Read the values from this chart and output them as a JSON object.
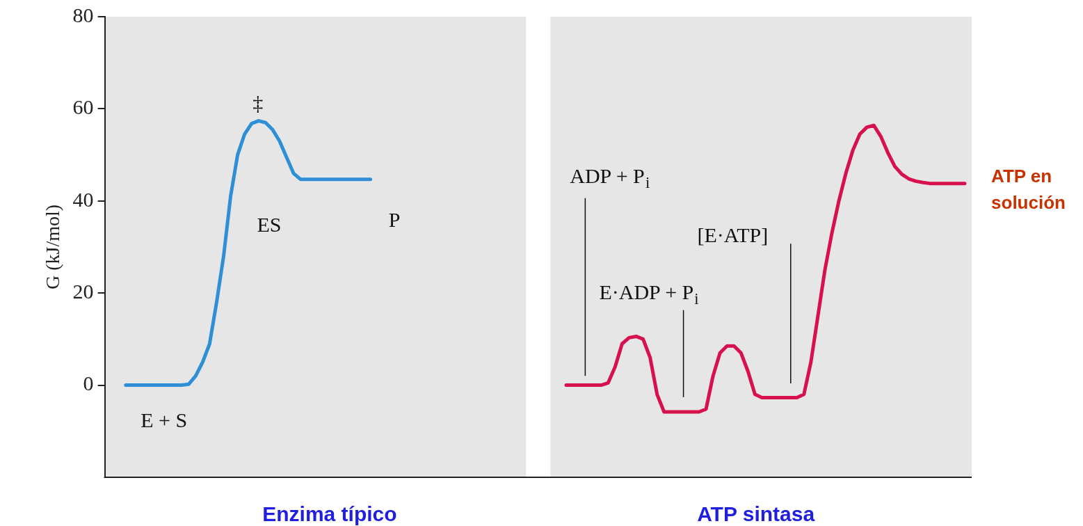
{
  "chart_data": {
    "type": "line",
    "ylabel": "G (kJ/mol)",
    "ylim": [
      -20,
      80
    ],
    "yticks": [
      0,
      20,
      40,
      60,
      80
    ],
    "tick_labels": "y",
    "categories": [
      null,
      null,
      null,
      null,
      null,
      null,
      null,
      null,
      null,
      null,
      null,
      null,
      null,
      null,
      null,
      null,
      null,
      null,
      null,
      null,
      null,
      null,
      null,
      null,
      null,
      null,
      null,
      null,
      null,
      null,
      null,
      null,
      null,
      null,
      null,
      null,
      null,
      null,
      null,
      null,
      null,
      null,
      null,
      null,
      null,
      null,
      null,
      null,
      null,
      null,
      null,
      null,
      null,
      null,
      null,
      null,
      null,
      null,
      null,
      null,
      null,
      null,
      null,
      null,
      null,
      null,
      null,
      null,
      null,
      null,
      null,
      null,
      null,
      null,
      null,
      null,
      null,
      null,
      null,
      null,
      null,
      null,
      null,
      null,
      null,
      null,
      null,
      null,
      null,
      null,
      null,
      null,
      null,
      null,
      null,
      null,
      null,
      null,
      null,
      null,
      null,
      null,
      null,
      null,
      null,
      null,
      null,
      null,
      null,
      null,
      null,
      null,
      null,
      null,
      null,
      null,
      null,
      null,
      null,
      null,
      null,
      null,
      null,
      null,
      null
    ],
    "series": [
      {
        "color": "#2f8fd6",
        "values": [
          null,
          null,
          null,
          0,
          0,
          0,
          0,
          0,
          0,
          0,
          0,
          0,
          0.2,
          2,
          5,
          9,
          18,
          28,
          41,
          50,
          54.5,
          56.8,
          57.4,
          57,
          55.5,
          53,
          49.5,
          46,
          44.7,
          44.7,
          44.7,
          44.7,
          44.7,
          44.7,
          44.7,
          44.7,
          44.7,
          44.7,
          44.7,
          null,
          null,
          null,
          null,
          null,
          null,
          null,
          null,
          null,
          null,
          null,
          null,
          null,
          null,
          null,
          null,
          null,
          null,
          null,
          null,
          null,
          null,
          null,
          null,
          null,
          null,
          null,
          null,
          null,
          null,
          null,
          null,
          null,
          null,
          null,
          null,
          null,
          null,
          null,
          null,
          null,
          null,
          null,
          null,
          null,
          null,
          null,
          null,
          null,
          null,
          null,
          null,
          null,
          null,
          null,
          null,
          null,
          null,
          null,
          null,
          null,
          null,
          null,
          null,
          null,
          null,
          null,
          null,
          null,
          null,
          null,
          null,
          null,
          null,
          null,
          null,
          null,
          null,
          null,
          null,
          null,
          null,
          null,
          null,
          null,
          null
        ]
      },
      {
        "color": "#d6114d",
        "values": [
          null,
          null,
          null,
          null,
          null,
          null,
          null,
          null,
          null,
          null,
          null,
          null,
          null,
          null,
          null,
          null,
          null,
          null,
          null,
          null,
          null,
          null,
          null,
          null,
          null,
          null,
          null,
          null,
          null,
          null,
          null,
          null,
          null,
          null,
          null,
          null,
          null,
          null,
          null,
          null,
          null,
          null,
          null,
          null,
          null,
          null,
          null,
          null,
          null,
          null,
          null,
          null,
          null,
          null,
          null,
          null,
          null,
          null,
          null,
          null,
          null,
          null,
          null,
          null,
          null,
          null,
          0,
          0,
          0,
          0,
          0,
          0,
          0.5,
          4,
          9,
          10.3,
          10.6,
          10,
          6,
          -2,
          -5.8,
          -5.8,
          -5.8,
          -5.8,
          -5.8,
          -5.8,
          -5.2,
          2,
          7,
          8.5,
          8.5,
          7,
          3,
          -2,
          -2.7,
          -2.7,
          -2.7,
          -2.7,
          -2.7,
          -2.7,
          -2,
          5,
          15,
          25,
          33,
          40,
          46,
          51,
          54.5,
          56,
          56.4,
          54,
          50.5,
          47.5,
          45.8,
          44.8,
          44.3,
          44,
          43.8,
          43.8,
          43.8,
          43.8,
          43.8,
          43.8,
          null
        ]
      }
    ],
    "annotations": [
      "‡",
      "ES",
      "E + S",
      "P",
      "ADP + P$_{i}$",
      "E·ADP + P$_{i}$",
      "[E·ATP]",
      "ATP en\nsolución",
      "Enzima típico",
      "ATP sintasa"
    ]
  }
}
